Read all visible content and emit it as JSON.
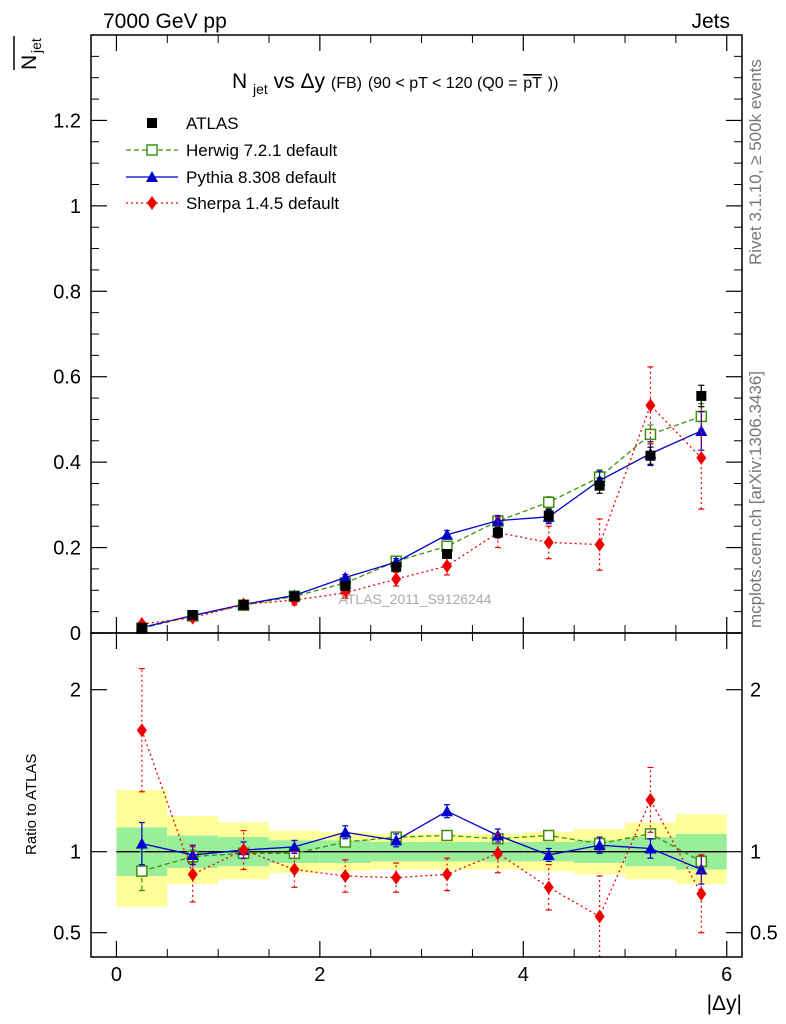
{
  "header": {
    "left": "7000 GeV pp",
    "right": "Jets"
  },
  "side_text": {
    "rivet": "Rivet 3.1.10, ≥ 500k events",
    "mcplots": "mcplots.cern.ch [arXiv:1306.3436]"
  },
  "watermark": "ATLAS_2011_S9126244",
  "colors": {
    "atlas": "#000000",
    "herwig": "#3f8f0f",
    "pythia": "#0000cc",
    "sherpa": "#ee0000",
    "band_inner": "#99ee99",
    "band_outer": "#ffff99"
  },
  "chart_data": [
    {
      "type": "line",
      "panel": "main",
      "title_parts": {
        "n": "N",
        "sub": "jet",
        "vs": " vs ",
        "delta": "Δy",
        "fb": " (FB)",
        "range": " (90 < pT < 120 (Q0 =",
        "pt": "pT",
        "close": "))"
      },
      "ylabel_parts": {
        "n": "N",
        "sub": "jet"
      },
      "xlim": [
        -0.25,
        6.15
      ],
      "ylim": [
        0,
        1.4
      ],
      "yticks": [
        0,
        0.2,
        0.4,
        0.6,
        0.8,
        1,
        1.2
      ],
      "ytick_labels": [
        "0",
        "0.2",
        "0.4",
        "0.6",
        "0.8",
        "1",
        "1.2"
      ],
      "x": [
        0.25,
        0.75,
        1.25,
        1.75,
        2.25,
        2.75,
        3.25,
        3.75,
        4.25,
        4.75,
        5.25,
        5.75
      ],
      "series": [
        {
          "name": "ATLAS",
          "key": "atlas",
          "values": [
            0.012,
            0.042,
            0.066,
            0.086,
            0.11,
            0.155,
            0.185,
            0.235,
            0.275,
            0.345,
            0.415,
            0.555
          ],
          "errors": [
            0.002,
            0.003,
            0.004,
            0.005,
            0.007,
            0.008,
            0.009,
            0.012,
            0.015,
            0.018,
            0.02,
            0.025
          ]
        },
        {
          "name": "Herwig 7.2.1 default",
          "key": "herwig",
          "values": [
            0.011,
            0.04,
            0.065,
            0.086,
            0.117,
            0.168,
            0.203,
            0.262,
            0.306,
            0.365,
            0.465,
            0.507
          ],
          "errors": [
            0.001,
            0.003,
            0.004,
            0.005,
            0.006,
            0.008,
            0.009,
            0.011,
            0.013,
            0.017,
            0.022,
            0.03
          ]
        },
        {
          "name": "Pythia 8.308 default",
          "key": "pythia",
          "values": [
            0.013,
            0.041,
            0.067,
            0.088,
            0.13,
            0.166,
            0.23,
            0.263,
            0.272,
            0.357,
            0.42,
            0.473
          ],
          "errors": [
            0.002,
            0.003,
            0.004,
            0.005,
            0.007,
            0.008,
            0.01,
            0.012,
            0.016,
            0.022,
            0.028,
            0.045
          ]
        },
        {
          "name": "Sherpa 1.4.5 default",
          "key": "sherpa",
          "values": [
            0.021,
            0.036,
            0.067,
            0.077,
            0.094,
            0.126,
            0.157,
            0.235,
            0.212,
            0.207,
            0.533,
            0.41
          ],
          "errors": [
            0.004,
            0.007,
            0.01,
            0.011,
            0.013,
            0.016,
            0.021,
            0.035,
            0.038,
            0.06,
            0.09,
            0.12
          ]
        }
      ]
    },
    {
      "type": "line",
      "panel": "ratio",
      "ylabel": "Ratio to ATLAS",
      "xlabel": "|Δy|",
      "xlim": [
        -0.25,
        6.15
      ],
      "ylim": [
        0.35,
        2.35
      ],
      "yticks": [
        0.5,
        1,
        2
      ],
      "ytick_labels": [
        "0.5",
        "1",
        "2"
      ],
      "xticks": [
        0,
        2,
        4,
        6
      ],
      "xtick_labels": [
        "0",
        "2",
        "4",
        "6"
      ],
      "x": [
        0.25,
        0.75,
        1.25,
        1.75,
        2.25,
        2.75,
        3.25,
        3.75,
        4.25,
        4.75,
        5.25,
        5.75
      ],
      "bands": {
        "edges": [
          0,
          0.5,
          1,
          1.5,
          2,
          2.5,
          3,
          3.5,
          4,
          4.5,
          5,
          5.5,
          6
        ],
        "inner": [
          [
            0.85,
            1.15
          ],
          [
            0.9,
            1.1
          ],
          [
            0.91,
            1.09
          ],
          [
            0.93,
            1.07
          ],
          [
            0.93,
            1.07
          ],
          [
            0.94,
            1.06
          ],
          [
            0.94,
            1.06
          ],
          [
            0.94,
            1.06
          ],
          [
            0.94,
            1.06
          ],
          [
            0.93,
            1.07
          ],
          [
            0.91,
            1.09
          ],
          [
            0.89,
            1.11
          ]
        ],
        "outer": [
          [
            0.66,
            1.38
          ],
          [
            0.8,
            1.22
          ],
          [
            0.83,
            1.18
          ],
          [
            0.87,
            1.13
          ],
          [
            0.88,
            1.12
          ],
          [
            0.89,
            1.11
          ],
          [
            0.89,
            1.11
          ],
          [
            0.89,
            1.11
          ],
          [
            0.88,
            1.12
          ],
          [
            0.86,
            1.14
          ],
          [
            0.83,
            1.18
          ],
          [
            0.8,
            1.23
          ]
        ]
      },
      "series": [
        {
          "name": "Herwig 7.2.1 default",
          "key": "herwig",
          "values": [
            0.88,
            0.97,
            0.99,
            0.99,
            1.06,
            1.09,
            1.1,
            1.08,
            1.1,
            1.05,
            1.11,
            0.94
          ],
          "errors": [
            0.12,
            0.04,
            0.03,
            0.03,
            0.03,
            0.03,
            0.03,
            0.03,
            0.03,
            0.03,
            0.03,
            0.04
          ]
        },
        {
          "name": "Pythia 8.308 default",
          "key": "pythia",
          "values": [
            1.05,
            0.98,
            1.01,
            1.03,
            1.12,
            1.07,
            1.25,
            1.1,
            0.98,
            1.04,
            1.02,
            0.89
          ],
          "errors": [
            0.13,
            0.06,
            0.05,
            0.04,
            0.04,
            0.04,
            0.04,
            0.04,
            0.04,
            0.05,
            0.06,
            0.09
          ]
        },
        {
          "name": "Sherpa 1.4.5 default",
          "key": "sherpa",
          "values": [
            1.75,
            0.86,
            1.01,
            0.89,
            0.85,
            0.84,
            0.86,
            0.99,
            0.78,
            0.6,
            1.32,
            0.74
          ],
          "errors": [
            0.38,
            0.17,
            0.12,
            0.11,
            0.1,
            0.09,
            0.1,
            0.12,
            0.14,
            0.25,
            0.2,
            0.24
          ]
        }
      ]
    }
  ]
}
